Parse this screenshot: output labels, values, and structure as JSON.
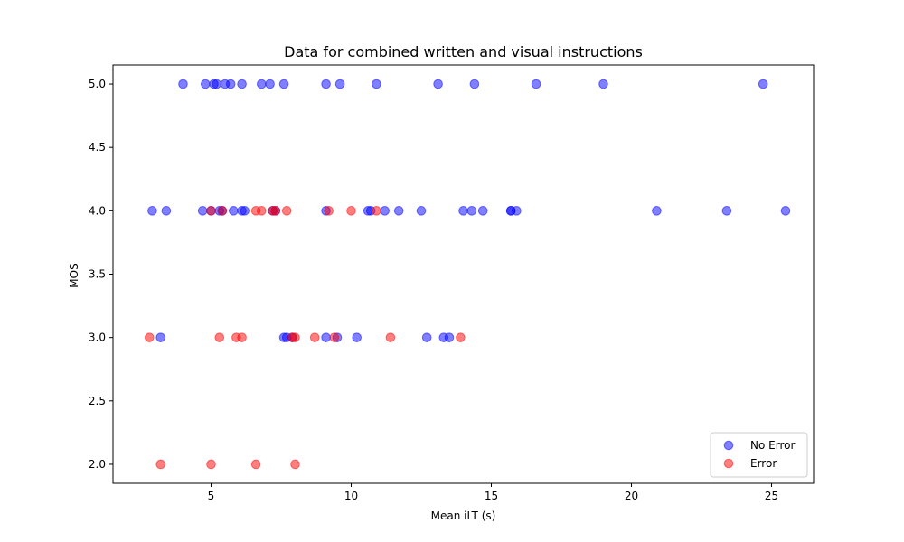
{
  "chart_data": {
    "type": "scatter",
    "title": "Data for combined written and visual instructions",
    "xlabel": "Mean iLT (s)",
    "ylabel": "MOS",
    "xlim": [
      1.5,
      26.5
    ],
    "ylim": [
      1.85,
      5.15
    ],
    "xticks": [
      5,
      10,
      15,
      20,
      25
    ],
    "yticks": [
      2.0,
      2.5,
      3.0,
      3.5,
      4.0,
      4.5,
      5.0
    ],
    "xtick_labels": [
      "5",
      "10",
      "15",
      "20",
      "25"
    ],
    "ytick_labels": [
      "2.0",
      "2.5",
      "3.0",
      "3.5",
      "4.0",
      "4.5",
      "5.0"
    ],
    "grid": false,
    "legend_position": "lower-right",
    "series": [
      {
        "name": "No Error",
        "color": "#0000ff",
        "points": [
          [
            4.0,
            5.0
          ],
          [
            4.8,
            5.0
          ],
          [
            5.1,
            5.0
          ],
          [
            5.2,
            5.0
          ],
          [
            5.5,
            5.0
          ],
          [
            5.7,
            5.0
          ],
          [
            6.1,
            5.0
          ],
          [
            6.8,
            5.0
          ],
          [
            7.1,
            5.0
          ],
          [
            7.6,
            5.0
          ],
          [
            9.1,
            5.0
          ],
          [
            9.6,
            5.0
          ],
          [
            10.9,
            5.0
          ],
          [
            13.1,
            5.0
          ],
          [
            14.4,
            5.0
          ],
          [
            16.6,
            5.0
          ],
          [
            19.0,
            5.0
          ],
          [
            24.7,
            5.0
          ],
          [
            2.9,
            4.0
          ],
          [
            3.4,
            4.0
          ],
          [
            4.7,
            4.0
          ],
          [
            5.0,
            4.0
          ],
          [
            5.3,
            4.0
          ],
          [
            5.4,
            4.0
          ],
          [
            5.8,
            4.0
          ],
          [
            6.1,
            4.0
          ],
          [
            6.2,
            4.0
          ],
          [
            7.2,
            4.0
          ],
          [
            7.3,
            4.0
          ],
          [
            9.1,
            4.0
          ],
          [
            10.6,
            4.0
          ],
          [
            10.7,
            4.0
          ],
          [
            11.2,
            4.0
          ],
          [
            11.7,
            4.0
          ],
          [
            12.5,
            4.0
          ],
          [
            14.0,
            4.0
          ],
          [
            14.3,
            4.0
          ],
          [
            14.7,
            4.0
          ],
          [
            15.7,
            4.0
          ],
          [
            15.7,
            4.0
          ],
          [
            15.9,
            4.0
          ],
          [
            20.9,
            4.0
          ],
          [
            23.4,
            4.0
          ],
          [
            25.5,
            4.0
          ],
          [
            3.2,
            3.0
          ],
          [
            7.6,
            3.0
          ],
          [
            7.7,
            3.0
          ],
          [
            7.9,
            3.0
          ],
          [
            9.1,
            3.0
          ],
          [
            9.5,
            3.0
          ],
          [
            10.2,
            3.0
          ],
          [
            12.7,
            3.0
          ],
          [
            13.3,
            3.0
          ],
          [
            13.5,
            3.0
          ]
        ]
      },
      {
        "name": "Error",
        "color": "#ff0000",
        "points": [
          [
            5.0,
            4.0
          ],
          [
            5.4,
            4.0
          ],
          [
            6.6,
            4.0
          ],
          [
            6.8,
            4.0
          ],
          [
            7.2,
            4.0
          ],
          [
            7.3,
            4.0
          ],
          [
            7.7,
            4.0
          ],
          [
            9.2,
            4.0
          ],
          [
            10.0,
            4.0
          ],
          [
            10.9,
            4.0
          ],
          [
            2.8,
            3.0
          ],
          [
            5.3,
            3.0
          ],
          [
            5.9,
            3.0
          ],
          [
            6.1,
            3.0
          ],
          [
            7.9,
            3.0
          ],
          [
            8.0,
            3.0
          ],
          [
            8.7,
            3.0
          ],
          [
            9.4,
            3.0
          ],
          [
            11.4,
            3.0
          ],
          [
            13.9,
            3.0
          ],
          [
            3.2,
            2.0
          ],
          [
            5.0,
            2.0
          ],
          [
            6.6,
            2.0
          ],
          [
            8.0,
            2.0
          ]
        ]
      }
    ]
  }
}
